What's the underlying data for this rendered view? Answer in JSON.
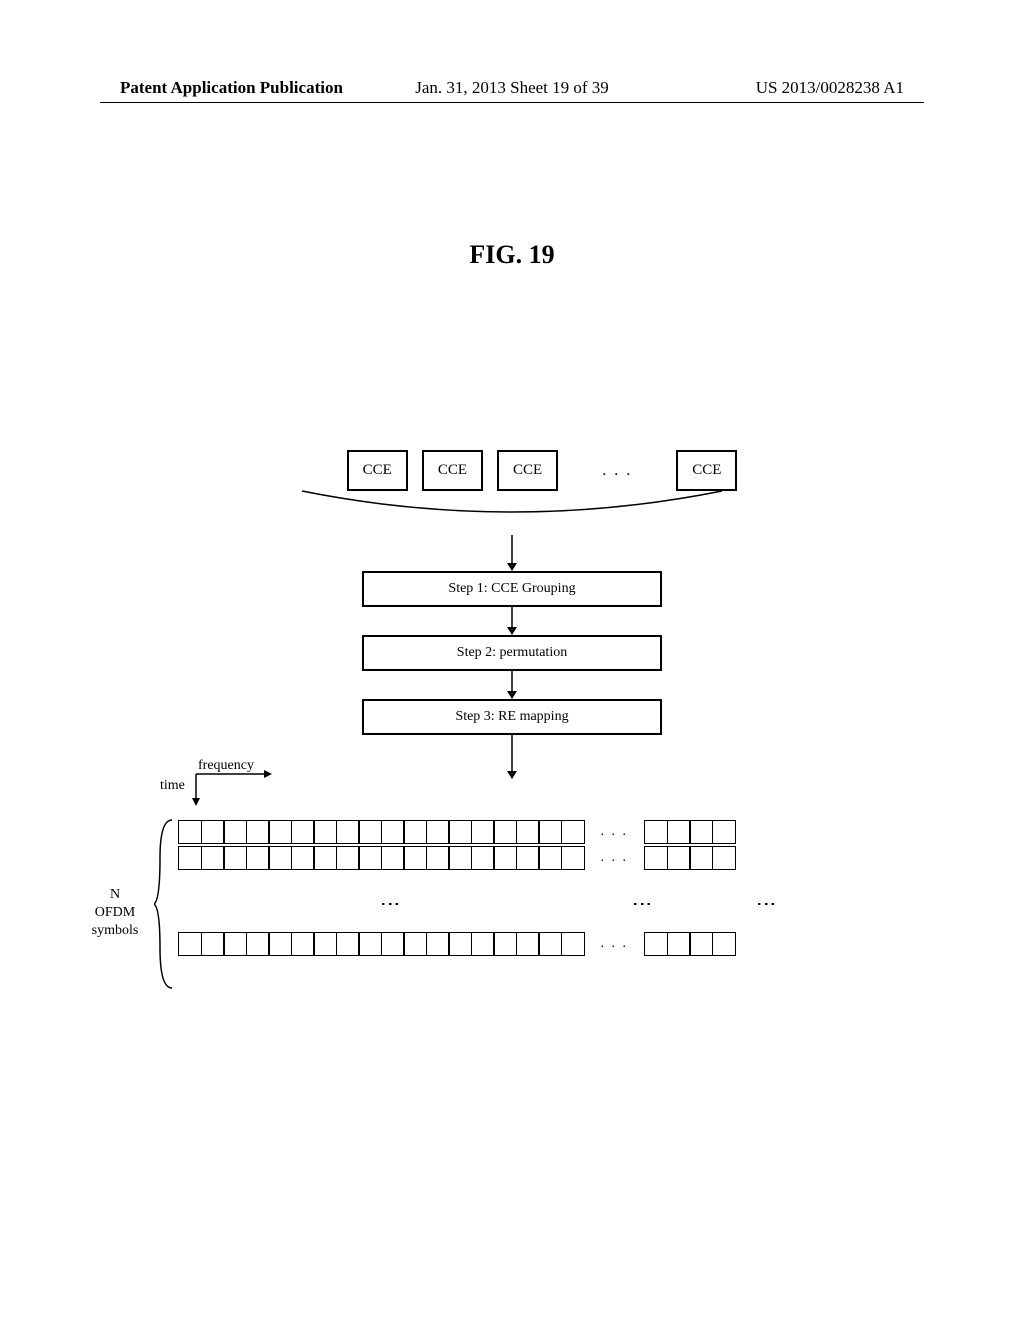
{
  "header": {
    "left": "Patent Application Publication",
    "center": "Jan. 31, 2013  Sheet 19 of 39",
    "right": "US 2013/0028238 A1"
  },
  "figure": {
    "title": "FIG. 19"
  },
  "cce": {
    "boxes": [
      "CCE",
      "CCE",
      "CCE",
      "CCE"
    ],
    "dots": ". . ."
  },
  "steps": {
    "s1": "Step 1: CCE Grouping",
    "s2": "Step 2: permutation",
    "s3": "Step 3: RE mapping"
  },
  "axes": {
    "frequency": "frequency",
    "time": "time"
  },
  "grid": {
    "left_label_l1": "N",
    "left_label_l2": "OFDM",
    "left_label_l3": "symbols",
    "row_cells_main": 18,
    "row_cells_right": 4,
    "h_dots": ". . .",
    "v_dots": "⋮"
  },
  "colors": {
    "stroke": "#000000",
    "bg": "#ffffff"
  }
}
